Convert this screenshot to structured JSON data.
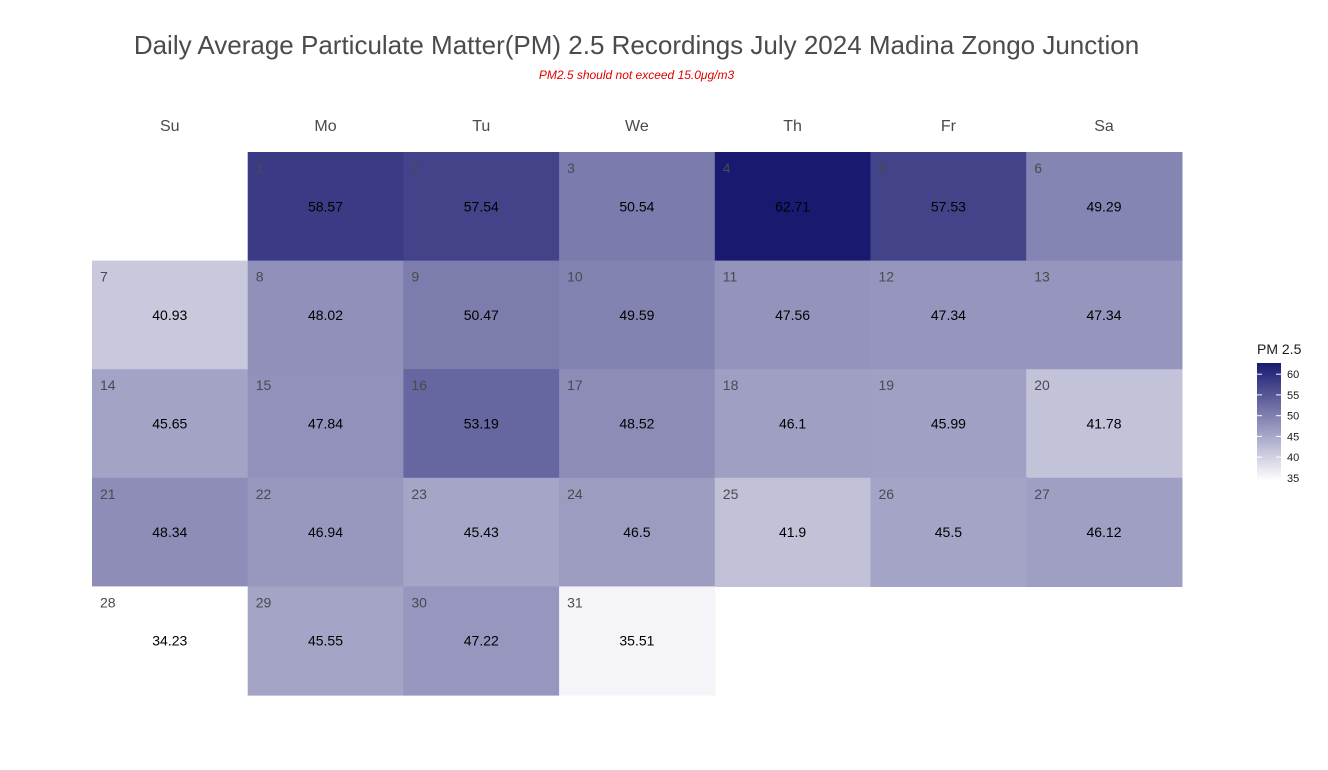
{
  "title": "Daily Average Particulate Matter(PM) 2.5 Recordings July 2024 Madina Zongo Junction",
  "subtitle": "PM2.5 should not exceed 15.0μg/m3",
  "chart_data": {
    "type": "heatmap",
    "title": "Daily Average Particulate Matter(PM) 2.5 Recordings July 2024 Madina Zongo Junction",
    "subtitle": "PM2.5 should not exceed 15.0μg/m3",
    "weekdays": [
      "Su",
      "Mo",
      "Tu",
      "We",
      "Th",
      "Fr",
      "Sa"
    ],
    "first_weekday_index": 1,
    "days": [
      1,
      2,
      3,
      4,
      5,
      6,
      7,
      8,
      9,
      10,
      11,
      12,
      13,
      14,
      15,
      16,
      17,
      18,
      19,
      20,
      21,
      22,
      23,
      24,
      25,
      26,
      27,
      28,
      29,
      30,
      31
    ],
    "values": [
      58.57,
      57.54,
      50.54,
      62.71,
      57.53,
      49.29,
      40.93,
      48.02,
      50.47,
      49.59,
      47.56,
      47.34,
      47.34,
      45.65,
      47.84,
      53.19,
      48.52,
      46.1,
      45.99,
      41.78,
      48.34,
      46.94,
      45.43,
      46.5,
      41.9,
      45.5,
      46.12,
      34.23,
      45.55,
      47.22,
      35.51
    ],
    "legend": {
      "title": "PM 2.5",
      "ticks": [
        35,
        40,
        45,
        50,
        55,
        60
      ],
      "range": [
        34.23,
        62.71
      ],
      "placement": "right"
    },
    "colors": {
      "low": "#ffffff",
      "high": "#191970"
    }
  }
}
